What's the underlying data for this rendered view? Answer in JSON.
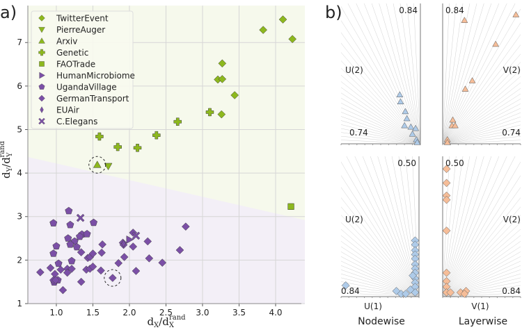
{
  "colors": {
    "green": "#8db81e",
    "purple": "#7b4fa6",
    "green_bg": "#f6f9ec",
    "purple_bg": "#f3eff7",
    "blue": "#aecbe9",
    "orange": "#f6bd98"
  },
  "chart_data": [
    {
      "type": "scatter",
      "panel_label": "a)",
      "xlabel": "d",
      "xlabel_sub": "X",
      "xlabel_den": "/d",
      "xlabel_den_sub": "X",
      "xlabel_sup": "rand",
      "ylabel": "d",
      "ylabel_sub": "Y",
      "ylabel_den": "/d",
      "ylabel_den_sub": "Y",
      "ylabel_sup": "rand",
      "xlim": [
        0.61,
        4.4
      ],
      "ylim": [
        1.0,
        7.85
      ],
      "xticks": [
        "1.0",
        "1.5",
        "2.0",
        "2.5",
        "3.0",
        "3.5",
        "4.0"
      ],
      "yticks": [
        "1",
        "2",
        "3",
        "4",
        "5",
        "6",
        "7"
      ],
      "grid": true,
      "legend_position": "top-left",
      "region_boundary": {
        "x": [
          0.61,
          4.4
        ],
        "y": [
          4.37,
          2.92
        ]
      },
      "highlighted": [
        [
          1.56,
          4.19
        ],
        [
          1.77,
          1.59
        ]
      ],
      "series": [
        {
          "name": "TwitterEvent",
          "marker": "diamond",
          "group": "green",
          "points": [
            [
              4.1,
              7.53
            ],
            [
              3.83,
              7.29
            ],
            [
              4.23,
              7.08
            ],
            [
              3.27,
              6.52
            ],
            [
              3.21,
              6.15
            ],
            [
              3.27,
              6.16
            ],
            [
              3.44,
              5.79
            ],
            [
              3.26,
              5.35
            ]
          ]
        },
        {
          "name": "PierreAuger",
          "marker": "triangle-down",
          "group": "green",
          "points": [
            [
              1.71,
              4.16
            ]
          ]
        },
        {
          "name": "Arxiv",
          "marker": "triangle-up",
          "group": "green",
          "points": [
            [
              1.56,
              4.19
            ]
          ]
        },
        {
          "name": "Genetic",
          "marker": "plus",
          "group": "green",
          "points": [
            [
              1.59,
              4.84
            ],
            [
              1.84,
              4.6
            ],
            [
              2.11,
              4.58
            ],
            [
              2.37,
              4.87
            ],
            [
              2.66,
              5.18
            ],
            [
              3.1,
              5.4
            ]
          ]
        },
        {
          "name": "FAOTrade",
          "marker": "square",
          "group": "green",
          "points": [
            [
              4.21,
              3.23
            ]
          ]
        },
        {
          "name": "HumanMicrobiome",
          "marker": "triangle-right",
          "group": "purple",
          "points": [
            [
              2.0,
              2.47
            ]
          ]
        },
        {
          "name": "UgandaVillage",
          "marker": "pentagon",
          "group": "purple",
          "points": [
            [
              1.17,
              3.13
            ],
            [
              0.96,
              2.85
            ],
            [
              1.51,
              2.86
            ],
            [
              1.19,
              2.81
            ],
            [
              1.35,
              2.59
            ],
            [
              1.42,
              2.6
            ],
            [
              1.16,
              2.5
            ],
            [
              1.32,
              2.54
            ],
            [
              1.25,
              2.43
            ],
            [
              1.19,
              2.36
            ],
            [
              1.0,
              2.32
            ],
            [
              1.28,
              2.3
            ],
            [
              0.96,
              2.15
            ],
            [
              1.21,
              1.98
            ],
            [
              1.03,
              1.92
            ],
            [
              0.97,
              1.49
            ],
            [
              1.02,
              1.54
            ]
          ]
        },
        {
          "name": "GermanTransport",
          "marker": "diamond",
          "group": "purple",
          "points": [
            [
              0.78,
              1.72
            ],
            [
              0.92,
              1.82
            ],
            [
              0.96,
              1.54
            ],
            [
              0.98,
              1.68
            ],
            [
              0.99,
              1.54
            ],
            [
              1.06,
              1.78
            ],
            [
              1.09,
              1.31
            ],
            [
              1.15,
              1.8
            ],
            [
              1.15,
              1.71
            ],
            [
              1.21,
              1.8
            ],
            [
              1.34,
              2.18
            ],
            [
              1.34,
              1.5
            ],
            [
              1.41,
              1.78
            ],
            [
              1.43,
              2.05
            ],
            [
              1.46,
              2.07
            ],
            [
              1.46,
              1.8
            ],
            [
              1.5,
              2.15
            ],
            [
              1.5,
              1.85
            ],
            [
              1.61,
              1.76
            ],
            [
              1.62,
              2.17
            ],
            [
              1.63,
              2.36
            ],
            [
              1.77,
              1.59
            ],
            [
              1.85,
              1.93
            ],
            [
              1.91,
              2.4
            ],
            [
              1.92,
              2.35
            ],
            [
              1.93,
              2.07
            ],
            [
              2.05,
              2.31
            ],
            [
              2.05,
              2.63
            ],
            [
              2.09,
              1.75
            ],
            [
              2.25,
              2.43
            ],
            [
              2.27,
              2.04
            ],
            [
              2.45,
              1.94
            ],
            [
              2.69,
              2.23
            ],
            [
              2.77,
              2.77
            ]
          ]
        },
        {
          "name": "EUAir",
          "marker": "thin-diamond",
          "group": "purple",
          "points": [
            [
              1.92,
              2.38
            ]
          ]
        },
        {
          "name": "C.Elegans",
          "marker": "x",
          "group": "purple",
          "points": [
            [
              1.33,
              2.97
            ],
            [
              2.09,
              2.56
            ]
          ]
        }
      ]
    },
    {
      "type": "scatter",
      "panel_label": "b)",
      "column_titles": [
        "Nodewise",
        "Layerwise"
      ],
      "subplots": [
        {
          "id": "nodewise-top",
          "color": "blue",
          "marker": "triangle-up",
          "origin": "bottom-right",
          "ylabel": "U(2)",
          "top_label": "0.84",
          "corner_label": "0.74",
          "xlabel": "",
          "points": [
            [
              74,
              35
            ],
            [
              75,
              30
            ],
            [
              81,
              23
            ],
            [
              83,
              18
            ],
            [
              80,
              13
            ],
            [
              88,
              12
            ],
            [
              94,
              11
            ],
            [
              90,
              7
            ],
            [
              95,
              3
            ],
            [
              96,
              1
            ]
          ]
        },
        {
          "id": "layerwise-top",
          "color": "orange",
          "marker": "triangle-up",
          "origin": "bottom-left",
          "ylabel": "V(2)",
          "top_label": "0.84",
          "corner_label": "0.74",
          "xlabel": "",
          "points": [
            [
              28,
              88
            ],
            [
              94,
              92
            ],
            [
              68,
              71
            ],
            [
              38,
              45
            ],
            [
              29,
              39
            ],
            [
              13,
              17
            ],
            [
              12,
              13
            ],
            [
              16,
              13
            ],
            [
              6,
              3
            ],
            [
              6,
              1
            ]
          ]
        },
        {
          "id": "nodewise-bottom",
          "color": "blue",
          "marker": "diamond",
          "origin": "bottom-right",
          "ylabel": "U(2)",
          "top_label": "0.50",
          "corner_label": "0.84",
          "xlabel": "U(1)",
          "points": [
            [
              95,
              40
            ],
            [
              95,
              37
            ],
            [
              95,
              33
            ],
            [
              95,
              30
            ],
            [
              95,
              27
            ],
            [
              95,
              23
            ],
            [
              95,
              20
            ],
            [
              95,
              17
            ],
            [
              95,
              13
            ],
            [
              95,
              10
            ],
            [
              95,
              7
            ],
            [
              95,
              3
            ],
            [
              6,
              8
            ],
            [
              71,
              4
            ],
            [
              77,
              2
            ],
            [
              83,
              2
            ],
            [
              89,
              5
            ],
            [
              92,
              15
            ]
          ]
        },
        {
          "id": "layerwise-bottom",
          "color": "orange",
          "marker": "diamond",
          "origin": "bottom-left",
          "ylabel": "V(2)",
          "top_label": "0.50",
          "corner_label": "0.84",
          "xlabel": "V(1)",
          "points": [
            [
              5,
              91
            ],
            [
              5,
              81
            ],
            [
              5,
              72
            ],
            [
              5,
              69
            ],
            [
              5,
              47
            ],
            [
              5,
              17
            ],
            [
              5,
              11
            ],
            [
              5,
              7
            ],
            [
              5,
              3
            ],
            [
              23,
              3
            ],
            [
              30,
              4
            ],
            [
              28,
              2
            ],
            [
              10,
              3
            ]
          ]
        }
      ]
    }
  ]
}
